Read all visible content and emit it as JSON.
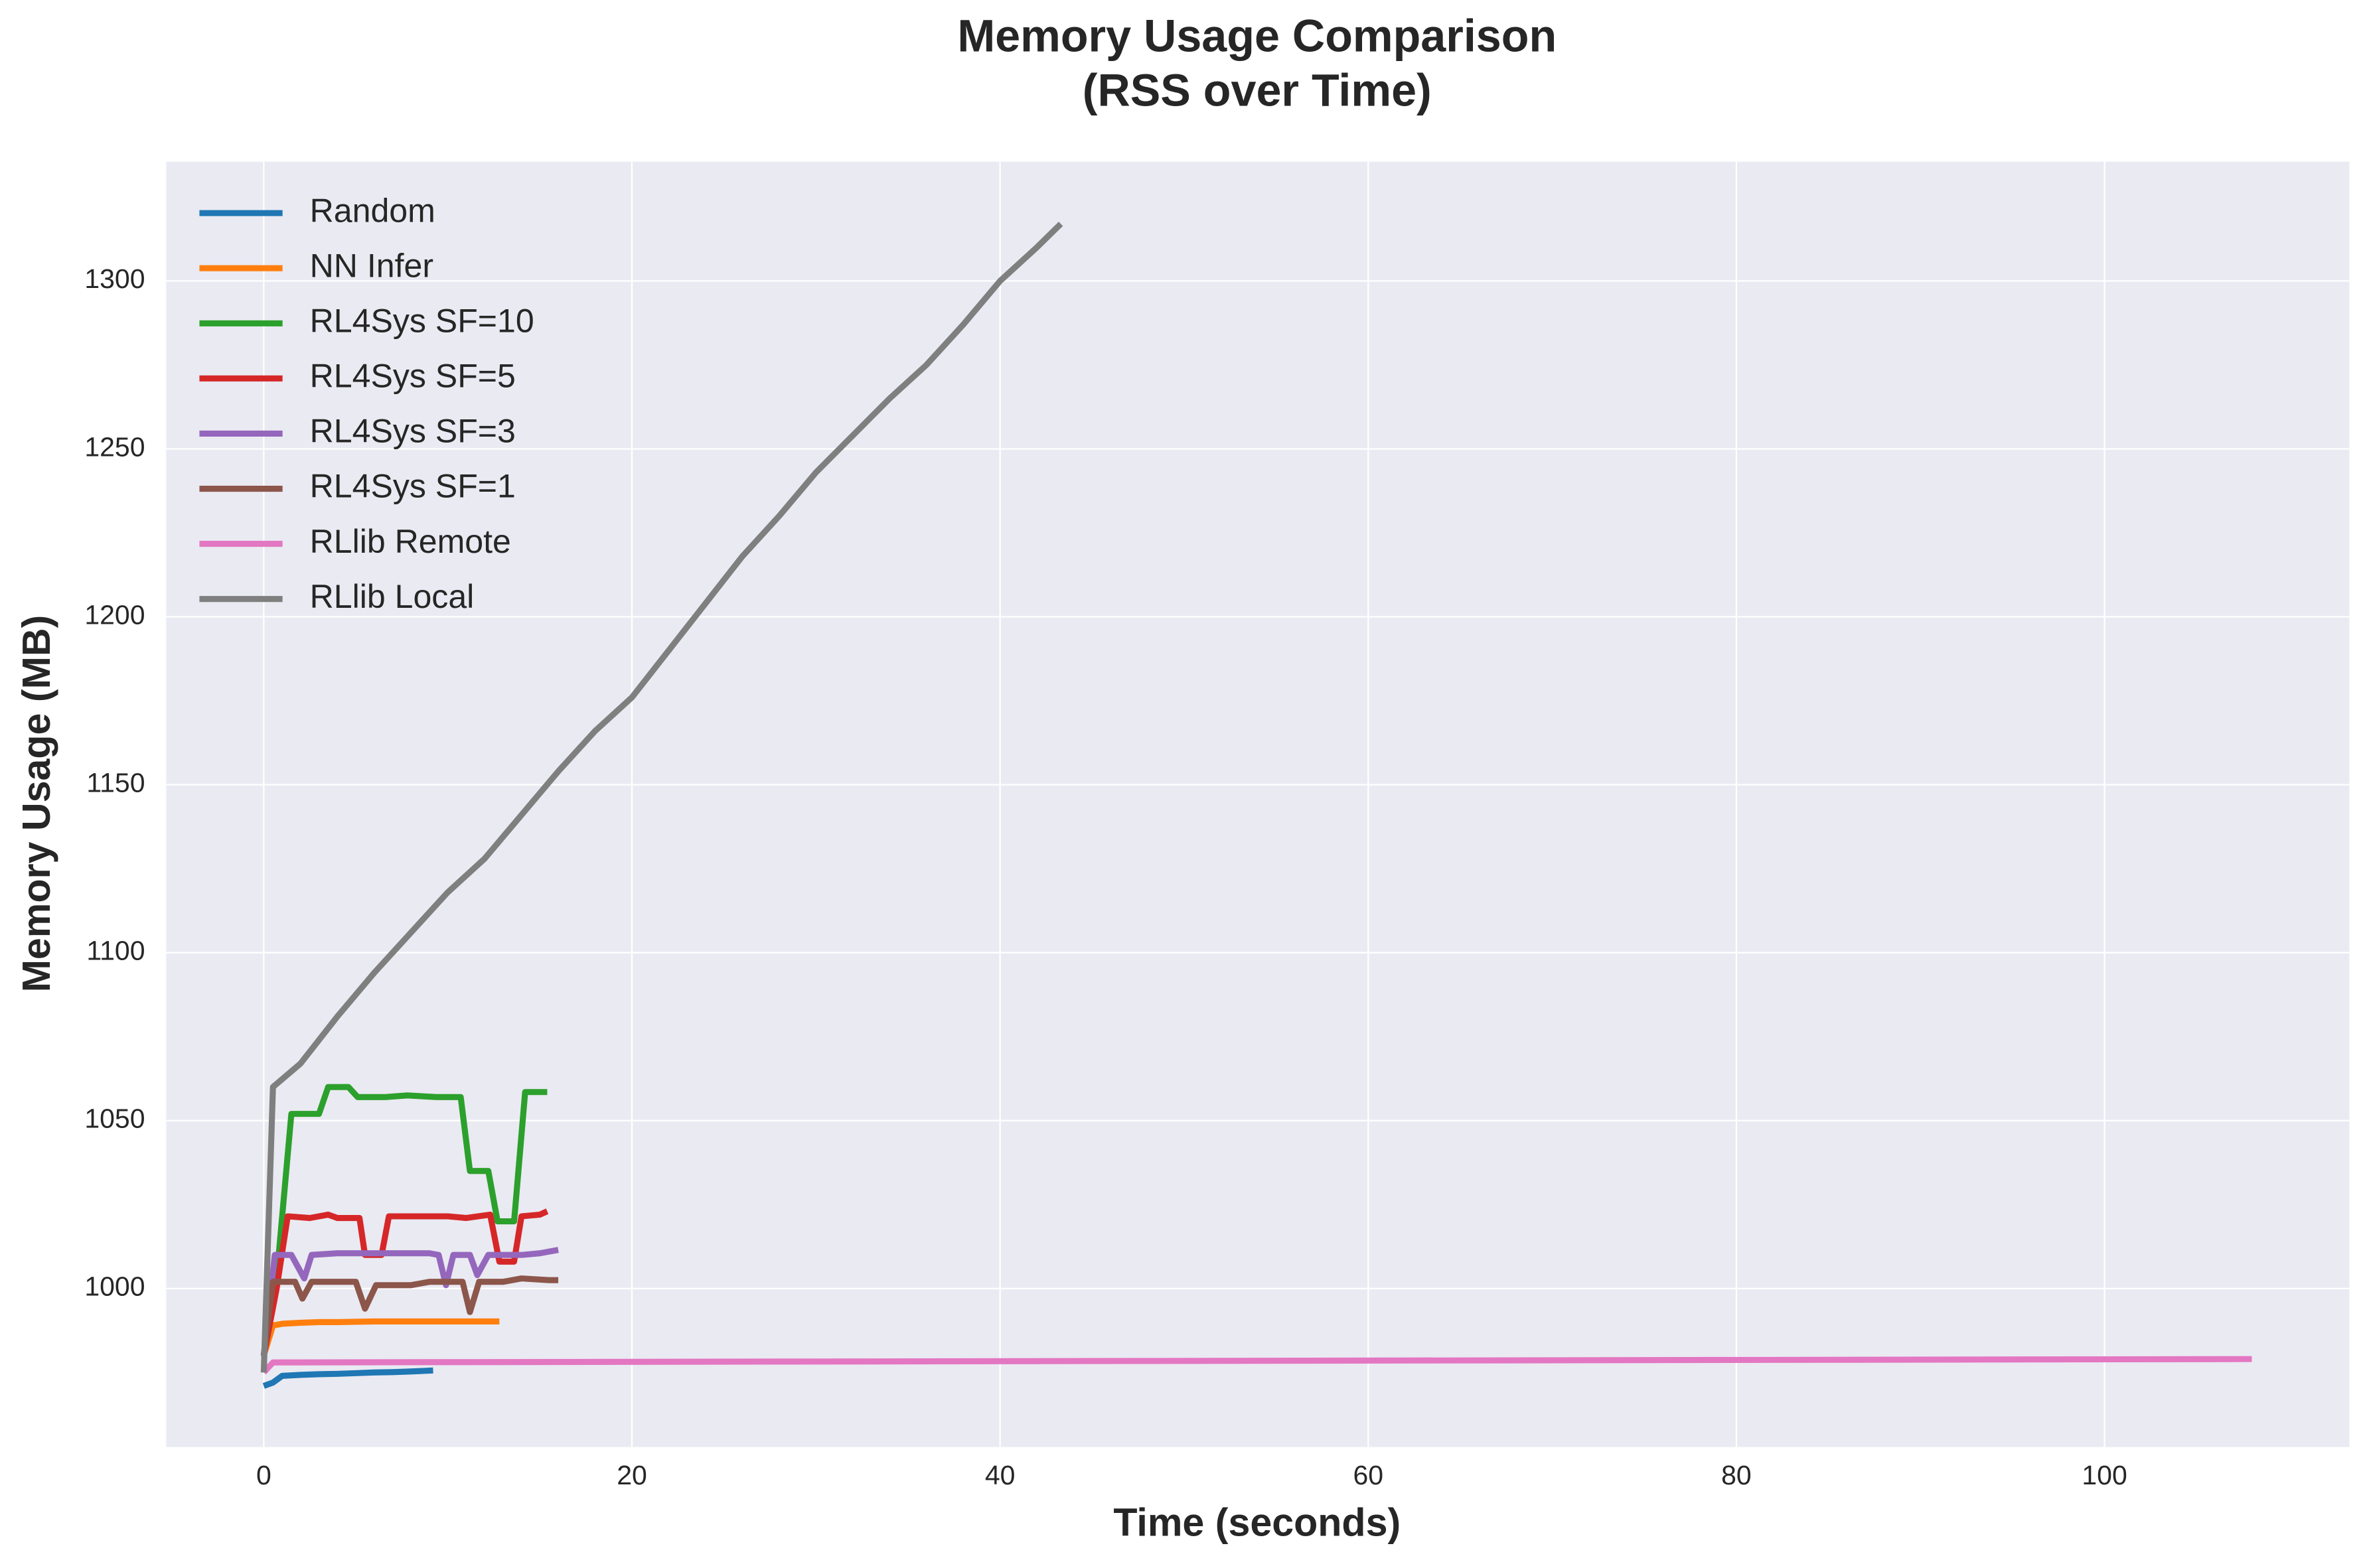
{
  "chart_data": {
    "type": "line",
    "title": [
      "Memory Usage Comparison",
      "(RSS over Time)"
    ],
    "x_label": "Time (seconds)",
    "y_label": "Memory Usage (MB)",
    "xlim": [
      -5.3,
      113.3
    ],
    "ylim": [
      952.8,
      1335.5
    ],
    "xticks": [
      0,
      20,
      40,
      60,
      80,
      100
    ],
    "yticks": [
      1000,
      1050,
      1100,
      1150,
      1200,
      1250,
      1300
    ],
    "grid": true,
    "legend": "upper-left",
    "series": [
      {
        "name": "Random",
        "color": "#1f77b4",
        "x": [
          0,
          0.5,
          1,
          2,
          3,
          4,
          5,
          6,
          7,
          8,
          9.2
        ],
        "values": [
          971,
          972,
          974,
          974.3,
          974.5,
          974.6,
          974.8,
          975,
          975.1,
          975.3,
          975.6
        ]
      },
      {
        "name": "NN Infer",
        "color": "#ff7f0e",
        "x": [
          0,
          0.5,
          1,
          2,
          3,
          4,
          5,
          6,
          7,
          8,
          9,
          10,
          11,
          12,
          12.8
        ],
        "values": [
          980,
          989,
          989.5,
          989.8,
          990,
          990,
          990.1,
          990.2,
          990.2,
          990.2,
          990.2,
          990.2,
          990.2,
          990.2,
          990.2
        ]
      },
      {
        "name": "RL4Sys SF=10",
        "color": "#2ca02c",
        "x": [
          0,
          0.65,
          1.5,
          3,
          3.5,
          4.6,
          5.1,
          6.6,
          7.8,
          9.4,
          10.7,
          11.2,
          12.2,
          12.7,
          13.6,
          14.2,
          15.4
        ],
        "values": [
          980,
          1000,
          1052,
          1052,
          1060,
          1060,
          1057,
          1057,
          1057.5,
          1057,
          1057,
          1035,
          1035,
          1020,
          1020,
          1058.5,
          1058.5
        ]
      },
      {
        "name": "RL4Sys SF=5",
        "color": "#d62728",
        "x": [
          0,
          0.7,
          1.3,
          2.5,
          3.5,
          4,
          5.2,
          5.5,
          6.4,
          6.8,
          10,
          11,
          12.3,
          12.8,
          13.6,
          14,
          15,
          15.4
        ],
        "values": [
          980,
          1000,
          1021.5,
          1021,
          1022,
          1021,
          1021,
          1010,
          1010,
          1021.5,
          1021.5,
          1021,
          1022,
          1008,
          1008,
          1021.5,
          1022,
          1023
        ]
      },
      {
        "name": "RL4Sys SF=3",
        "color": "#9467bd",
        "x": [
          0,
          0.6,
          1.5,
          2.2,
          2.6,
          4,
          6,
          9,
          9.5,
          9.9,
          10.3,
          11.2,
          11.6,
          12.2,
          14,
          15,
          16
        ],
        "values": [
          980,
          1010,
          1010,
          1003,
          1010,
          1010.5,
          1010.5,
          1010.5,
          1010,
          1001,
          1010,
          1010,
          1004,
          1010,
          1010,
          1010.5,
          1011.5
        ]
      },
      {
        "name": "RL4Sys SF=1",
        "color": "#8c564b",
        "x": [
          0,
          0.5,
          1.7,
          2.1,
          2.6,
          4,
          5,
          5.5,
          6.1,
          8,
          9,
          10.8,
          11.2,
          11.7,
          13,
          14,
          15.5,
          16
        ],
        "values": [
          980,
          1002,
          1002,
          997,
          1002,
          1002,
          1002,
          994,
          1001,
          1001,
          1002,
          1002,
          993,
          1002,
          1002,
          1003,
          1002.5,
          1002.5
        ]
      },
      {
        "name": "RLlib Remote",
        "color": "#e377c2",
        "x": [
          0,
          0.5,
          2,
          108
        ],
        "values": [
          975,
          978,
          978,
          979
        ]
      },
      {
        "name": "RLlib Local",
        "color": "#7f7f7f",
        "x": [
          0,
          0.5,
          2,
          4,
          6,
          8,
          10,
          12,
          14,
          16,
          18,
          20,
          22,
          24,
          26,
          28,
          30,
          32,
          34,
          36,
          38,
          40,
          42,
          43.3
        ],
        "values": [
          975,
          1060,
          1067,
          1081,
          1094,
          1106,
          1118,
          1128,
          1141,
          1154,
          1166,
          1176,
          1190,
          1204,
          1218,
          1230,
          1243,
          1254,
          1265,
          1275,
          1287,
          1300,
          1310,
          1317
        ]
      }
    ]
  }
}
